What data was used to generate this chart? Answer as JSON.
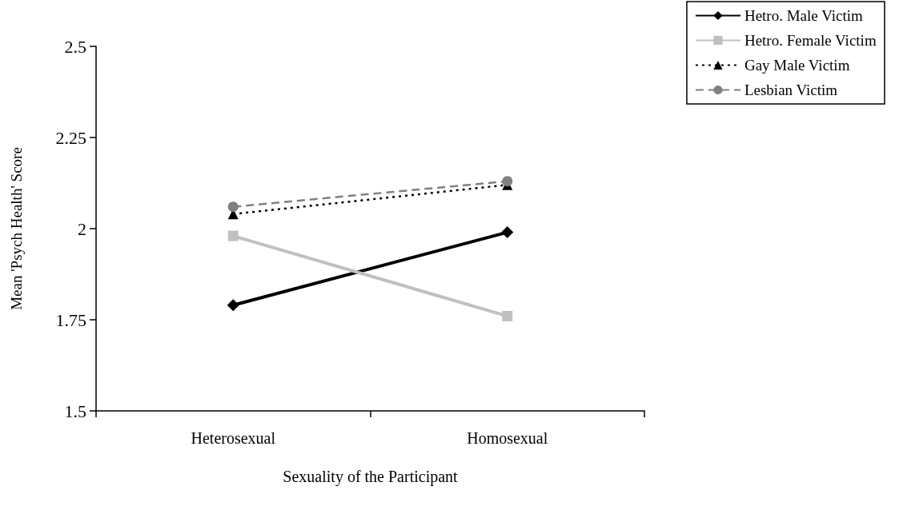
{
  "chart_data": {
    "type": "line",
    "xlabel": "Sexuality of the Participant",
    "ylabel": "Mean 'Psych Health' Score",
    "categories": [
      "Heterosexual",
      "Homosexual"
    ],
    "series": [
      {
        "name": "Hetro. Male Victim",
        "color": "#000000",
        "values": [
          1.79,
          1.99
        ],
        "marker": "diamond",
        "line_style": "solid"
      },
      {
        "name": "Hetro. Female Victim",
        "color": "#c0c0c0",
        "values": [
          1.98,
          1.76
        ],
        "marker": "square",
        "line_style": "solid"
      },
      {
        "name": "Gay Male Victim",
        "color": "#000000",
        "values": [
          2.04,
          2.12
        ],
        "marker": "triangle",
        "line_style": "dotted"
      },
      {
        "name": "Lesbian Victim",
        "color": "#808080",
        "values": [
          2.06,
          2.13
        ],
        "marker": "circle",
        "line_style": "dashed"
      }
    ],
    "ylim": [
      1.5,
      2.5
    ],
    "yticks": [
      1.5,
      1.75,
      2,
      2.25,
      2.5
    ],
    "grid": false,
    "legend": "top right"
  }
}
